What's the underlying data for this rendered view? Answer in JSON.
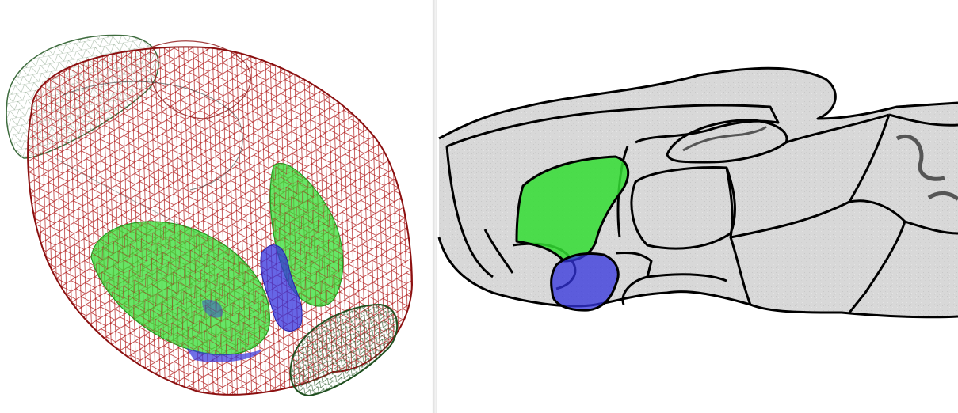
{
  "viewer": {
    "left_view": "3d-mesh",
    "right_view": "sagittal-slice"
  },
  "colors": {
    "background": "#ffffff",
    "cerebrum_mesh": "#b01818",
    "olfactory_mesh": "#2f5e2f",
    "cerebellum_mesh": "#1f4f1f",
    "structure_green": "#33dd33",
    "structure_blue": "#3333dd",
    "slice_tissue": "#d9d9d9",
    "slice_outline": "#000000"
  },
  "structures": [
    {
      "name": "green-region",
      "color": "#33dd33"
    },
    {
      "name": "blue-region",
      "color": "#3333dd"
    }
  ]
}
